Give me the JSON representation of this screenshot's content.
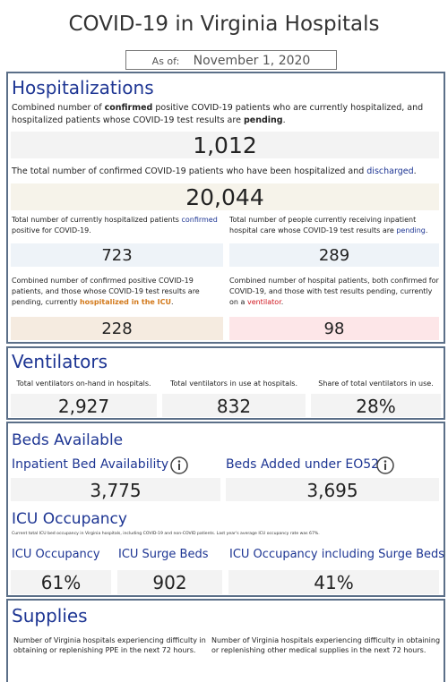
{
  "header": {
    "title": "COVID-19 in Virginia Hospitals",
    "as_of_label": "As of:",
    "as_of_date": "November 1, 2020"
  },
  "hospitalizations": {
    "title": "Hospitalizations",
    "current": {
      "description": [
        "Combined number of ",
        "confirmed",
        " positive COVID-19 patients who are currently hospitalized, and hospitalized patients whose COVID-19 test results are ",
        "pending",
        "."
      ],
      "value": "1,012"
    },
    "discharged": {
      "description": [
        "The total number of confirmed COVID-19 patients who have been hospitalized and ",
        "discharged",
        "."
      ],
      "value": "20,044"
    },
    "confirmed": {
      "description": [
        "Total number of currently hospitalized patients ",
        "confirmed",
        " positive for COVID-19."
      ],
      "value": "723"
    },
    "pending": {
      "description": [
        "Total number of people currently receiving inpatient hospital care whose COVID-19 test results are ",
        "pending",
        "."
      ],
      "value": "289"
    },
    "icu": {
      "description": [
        "Combined number of confirmed positive COVID-19 patients, and those whose COVID-19 test results are pending, currently ",
        "hospitalized in the ICU",
        "."
      ],
      "value": "228"
    },
    "ventilator": {
      "description": [
        "Combined number of hospital patients, both confirmed for COVID-19, and those with test results pending, currently on a ",
        "ventilator",
        "."
      ],
      "value": "98"
    }
  },
  "ventilators": {
    "title": "Ventilators",
    "items": [
      {
        "label": "Total ventilators on-hand in hospitals.",
        "value": "2,927"
      },
      {
        "label": "Total ventilators in use at hospitals.",
        "value": "832"
      },
      {
        "label": "Share of total ventilators in use.",
        "value": "28%"
      }
    ]
  },
  "beds": {
    "title": "Beds Available",
    "items": [
      {
        "label": "Inpatient Bed Availability",
        "value": "3,775"
      },
      {
        "label": "Beds Added under EO52",
        "value": "3,695"
      }
    ],
    "icu_title": "ICU Occupancy",
    "icu_note": "Current total ICU bed occupancy in Virginia hospitals, including COVID-19 and non-COVID patients. Last year's average ICU occupancy rate was 67%.",
    "icu_items": [
      {
        "label": "ICU Occupancy",
        "value": "61%"
      },
      {
        "label": "ICU Surge Beds",
        "value": "902"
      },
      {
        "label": "ICU Occupancy including Surge Beds",
        "value": "41%"
      }
    ]
  },
  "supplies": {
    "title": "Supplies",
    "items": [
      "Number of Virginia hospitals experiencing difficulty in obtaining or replenishing PPE in the next 72 hours.",
      "Number of Virginia hospitals experiencing difficulty in obtaining or replenishing other medical supplies in the next 72 hours."
    ]
  }
}
